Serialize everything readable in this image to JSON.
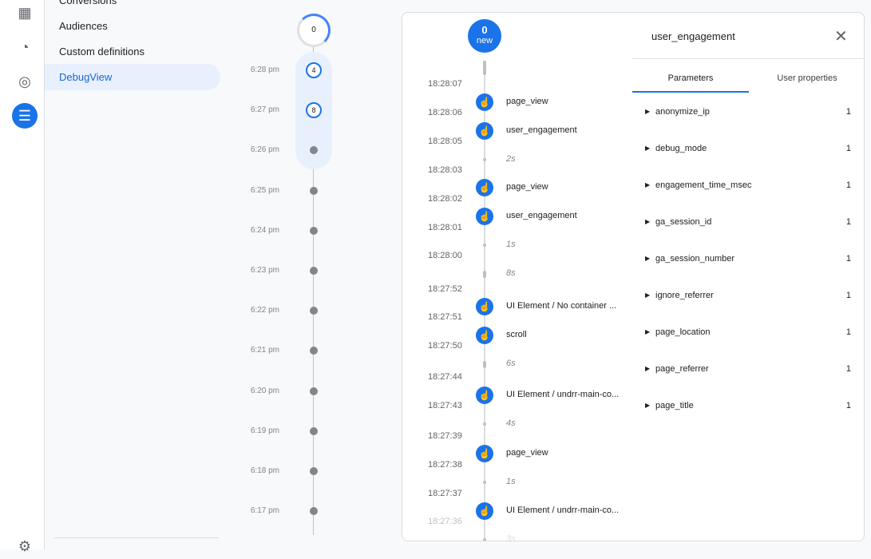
{
  "rail": {
    "icons": [
      "reports-icon",
      "explore-icon",
      "advertising-icon",
      "configure-icon",
      "settings-icon"
    ]
  },
  "nav": {
    "items": [
      {
        "label": "Conversions"
      },
      {
        "label": "Audiences"
      },
      {
        "label": "Custom definitions"
      },
      {
        "label": "DebugView",
        "active": true
      }
    ]
  },
  "minutes": {
    "top_count": "0",
    "rows": [
      {
        "time": "6:28 pm",
        "count": "4"
      },
      {
        "time": "6:27 pm",
        "count": "8"
      },
      {
        "time": "6:26 pm"
      },
      {
        "time": "6:25 pm"
      },
      {
        "time": "6:24 pm"
      },
      {
        "time": "6:23 pm"
      },
      {
        "time": "6:22 pm"
      },
      {
        "time": "6:21 pm"
      },
      {
        "time": "6:20 pm"
      },
      {
        "time": "6:19 pm"
      },
      {
        "time": "6:18 pm"
      },
      {
        "time": "6:17 pm"
      }
    ]
  },
  "stream": {
    "new_count": "0",
    "new_label": "new",
    "timestamps": [
      "18:28:07",
      "18:28:06",
      "18:28:05",
      "18:28:03",
      "18:28:02",
      "18:28:01",
      "18:28:00",
      "18:27:52",
      "18:27:51",
      "18:27:50",
      "18:27:44",
      "18:27:43",
      "18:27:39",
      "18:27:38",
      "18:27:37",
      "18:27:36"
    ],
    "events": [
      {
        "type": "event",
        "label": "page_view"
      },
      {
        "type": "event",
        "label": "user_engagement"
      },
      {
        "type": "gap",
        "label": "2s"
      },
      {
        "type": "event",
        "label": "page_view"
      },
      {
        "type": "event",
        "label": "user_engagement"
      },
      {
        "type": "gap",
        "label": "1s"
      },
      {
        "type": "gapbar",
        "label": "8s"
      },
      {
        "type": "event",
        "label": "UI Element / No container ..."
      },
      {
        "type": "event",
        "label": "scroll"
      },
      {
        "type": "gapbar",
        "label": "6s"
      },
      {
        "type": "event",
        "label": "UI Element / undrr-main-co..."
      },
      {
        "type": "gap",
        "label": "4s"
      },
      {
        "type": "event",
        "label": "page_view"
      },
      {
        "type": "gap",
        "label": "1s"
      },
      {
        "type": "event",
        "label": "UI Element / undrr-main-co..."
      },
      {
        "type": "gap",
        "label": "3s"
      }
    ]
  },
  "detail": {
    "title": "user_engagement",
    "tabs": [
      {
        "label": "Parameters",
        "active": true
      },
      {
        "label": "User properties"
      }
    ],
    "params": [
      {
        "name": "anonymize_ip",
        "value": "1"
      },
      {
        "name": "debug_mode",
        "value": "1"
      },
      {
        "name": "engagement_time_msec",
        "value": "1"
      },
      {
        "name": "ga_session_id",
        "value": "1"
      },
      {
        "name": "ga_session_number",
        "value": "1"
      },
      {
        "name": "ignore_referrer",
        "value": "1"
      },
      {
        "name": "page_location",
        "value": "1"
      },
      {
        "name": "page_referrer",
        "value": "1"
      },
      {
        "name": "page_title",
        "value": "1"
      }
    ]
  },
  "colors": {
    "accent": "#1a73e8",
    "active_bg": "#e8f0fe"
  }
}
